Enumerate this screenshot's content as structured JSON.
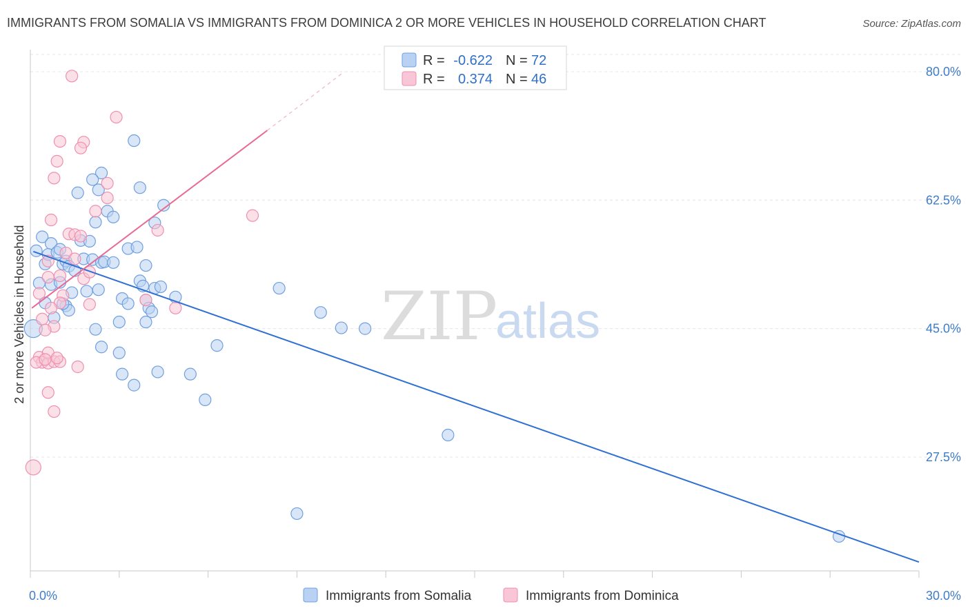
{
  "chart_data": {
    "type": "scatter",
    "title": "IMMIGRANTS FROM SOMALIA VS IMMIGRANTS FROM DOMINICA 2 OR MORE VEHICLES IN HOUSEHOLD CORRELATION CHART",
    "source": "Source: ZipAtlas.com",
    "xlabel": "",
    "ylabel": "2 or more Vehicles in Household",
    "xlim": [
      0,
      30
    ],
    "ylim": [
      12,
      83
    ],
    "x_tick_labels": [
      {
        "value": 0,
        "label": "0.0%"
      },
      {
        "value": 30,
        "label": "30.0%"
      }
    ],
    "y_tick_labels": [
      {
        "value": 27.5,
        "label": "27.5%"
      },
      {
        "value": 45.0,
        "label": "45.0%"
      },
      {
        "value": 62.5,
        "label": "62.5%"
      },
      {
        "value": 80.0,
        "label": "80.0%"
      }
    ],
    "watermark": {
      "part1": "ZIP",
      "part2": "atlas"
    },
    "stats": {
      "r_label": "R =",
      "n_label": "N =",
      "rows": [
        {
          "r": "-0.622",
          "n": "72",
          "color": "#6f9fe0"
        },
        {
          "r": "0.374",
          "n": "46",
          "color": "#ef8fb0"
        }
      ]
    },
    "series": [
      {
        "name": "Immigrants from Somalia",
        "color": "#6f9fe0",
        "fill": "#b9d2f3",
        "trend": {
          "x1": 0.1,
          "y1": 55.5,
          "x2": 30.0,
          "y2": 13.2,
          "color": "#2f6fd4"
        },
        "points": [
          [
            0.2,
            55.6
          ],
          [
            0.4,
            57.5
          ],
          [
            0.7,
            56.6
          ],
          [
            0.5,
            53.8
          ],
          [
            0.6,
            55.1
          ],
          [
            0.9,
            55.4
          ],
          [
            1.1,
            53.8
          ],
          [
            1.2,
            54.2
          ],
          [
            1.3,
            53.5
          ],
          [
            1.5,
            52.9
          ],
          [
            1.7,
            57.0
          ],
          [
            1.8,
            54.5
          ],
          [
            2.1,
            54.4
          ],
          [
            2.4,
            54.0
          ],
          [
            2.5,
            54.1
          ],
          [
            2.0,
            56.9
          ],
          [
            2.2,
            59.5
          ],
          [
            2.3,
            63.9
          ],
          [
            2.4,
            66.2
          ],
          [
            2.1,
            65.3
          ],
          [
            1.6,
            63.5
          ],
          [
            2.6,
            61.0
          ],
          [
            2.8,
            60.2
          ],
          [
            3.5,
            70.6
          ],
          [
            3.7,
            64.2
          ],
          [
            4.5,
            61.8
          ],
          [
            4.2,
            59.4
          ],
          [
            3.3,
            55.9
          ],
          [
            3.6,
            56.1
          ],
          [
            3.9,
            53.6
          ],
          [
            0.3,
            51.2
          ],
          [
            0.7,
            51.0
          ],
          [
            1.0,
            51.3
          ],
          [
            1.4,
            49.9
          ],
          [
            1.9,
            50.1
          ],
          [
            2.3,
            50.3
          ],
          [
            0.5,
            48.5
          ],
          [
            1.2,
            48.1
          ],
          [
            1.3,
            47.5
          ],
          [
            3.1,
            49.1
          ],
          [
            3.3,
            48.4
          ],
          [
            3.7,
            51.5
          ],
          [
            3.8,
            50.8
          ],
          [
            4.2,
            50.5
          ],
          [
            4.4,
            50.7
          ],
          [
            3.9,
            48.9
          ],
          [
            4.0,
            47.8
          ],
          [
            4.1,
            47.3
          ],
          [
            0.8,
            46.5
          ],
          [
            2.2,
            44.9
          ],
          [
            2.4,
            42.5
          ],
          [
            3.0,
            45.9
          ],
          [
            3.9,
            45.9
          ],
          [
            3.0,
            41.7
          ],
          [
            3.1,
            38.8
          ],
          [
            3.5,
            37.3
          ],
          [
            4.3,
            39.1
          ],
          [
            5.4,
            38.8
          ],
          [
            5.9,
            35.3
          ],
          [
            6.3,
            42.7
          ],
          [
            8.4,
            50.5
          ],
          [
            9.8,
            47.2
          ],
          [
            10.5,
            45.1
          ],
          [
            11.3,
            45.0
          ],
          [
            14.1,
            30.5
          ],
          [
            9.0,
            19.8
          ],
          [
            27.3,
            16.7
          ],
          [
            0.1,
            45.0
          ],
          [
            1.0,
            55.8
          ],
          [
            2.8,
            54.0
          ],
          [
            4.9,
            49.3
          ],
          [
            1.1,
            48.4
          ]
        ]
      },
      {
        "name": "Immigrants from Dominica",
        "color": "#ef8fb0",
        "fill": "#f8c6d6",
        "trend": {
          "x1": 0.05,
          "y1": 47.8,
          "x2": 8.0,
          "y2": 72.0,
          "color": "#e86a94"
        },
        "trend_dashed": {
          "x1": 8.0,
          "y1": 72.0,
          "x2": 10.6,
          "y2": 80.0
        },
        "points": [
          [
            1.4,
            79.4
          ],
          [
            2.9,
            73.8
          ],
          [
            1.0,
            70.5
          ],
          [
            1.8,
            70.4
          ],
          [
            1.7,
            69.6
          ],
          [
            0.9,
            67.8
          ],
          [
            0.8,
            65.5
          ],
          [
            2.6,
            64.8
          ],
          [
            2.6,
            62.8
          ],
          [
            2.2,
            61.0
          ],
          [
            0.7,
            59.8
          ],
          [
            1.3,
            57.9
          ],
          [
            1.5,
            57.8
          ],
          [
            1.7,
            57.6
          ],
          [
            4.3,
            58.4
          ],
          [
            7.5,
            60.4
          ],
          [
            1.2,
            55.3
          ],
          [
            1.5,
            54.5
          ],
          [
            0.6,
            54.2
          ],
          [
            0.6,
            52.0
          ],
          [
            1.0,
            52.2
          ],
          [
            1.8,
            51.8
          ],
          [
            2.0,
            52.7
          ],
          [
            0.3,
            49.8
          ],
          [
            1.1,
            49.5
          ],
          [
            1.0,
            48.5
          ],
          [
            2.0,
            48.3
          ],
          [
            3.9,
            48.9
          ],
          [
            4.9,
            47.8
          ],
          [
            0.7,
            47.8
          ],
          [
            0.4,
            46.3
          ],
          [
            0.8,
            45.3
          ],
          [
            0.5,
            44.8
          ],
          [
            0.3,
            41.1
          ],
          [
            0.4,
            40.4
          ],
          [
            0.6,
            40.3
          ],
          [
            0.8,
            40.5
          ],
          [
            1.0,
            40.5
          ],
          [
            0.6,
            41.7
          ],
          [
            1.6,
            39.8
          ],
          [
            0.6,
            36.3
          ],
          [
            0.8,
            33.7
          ],
          [
            0.1,
            26.1
          ],
          [
            0.2,
            40.4
          ],
          [
            0.9,
            41.0
          ],
          [
            0.5,
            40.8
          ]
        ]
      }
    ]
  }
}
